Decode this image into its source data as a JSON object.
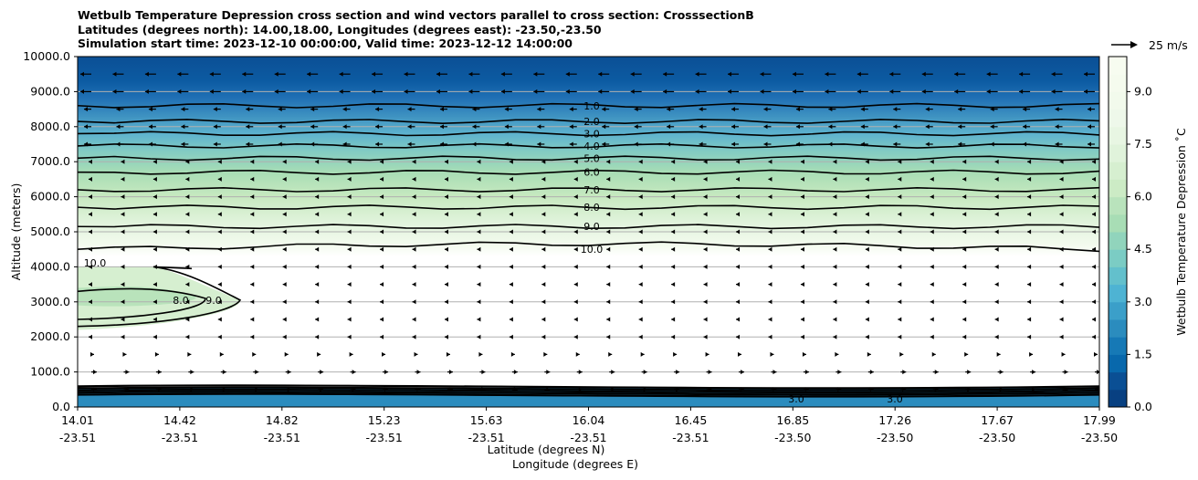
{
  "title": {
    "line1": "Wetbulb Temperature Depression cross section and wind vectors parallel to cross section: CrosssectionB",
    "line2": "Latitudes (degrees north): 14.00,18.00, Longitudes (degrees east): -23.50,-23.50",
    "line3": "Simulation start time: 2023-12-10 00:00:00, Valid time: 2023-12-12 14:00:00"
  },
  "chart_data": {
    "type": "heatmap",
    "xlabel_lat": "Latitude (degrees N)",
    "xlabel_lon": "Longitude (degrees E)",
    "ylabel": "Altitude (meters)",
    "ylim": [
      0,
      10000
    ],
    "yticks": [
      "0.0",
      "1000.0",
      "2000.0",
      "3000.0",
      "4000.0",
      "5000.0",
      "6000.0",
      "7000.0",
      "8000.0",
      "9000.0",
      "10000.0"
    ],
    "yticks_values": [
      0,
      1000,
      2000,
      3000,
      4000,
      5000,
      6000,
      7000,
      8000,
      9000,
      10000
    ],
    "xticks": [
      {
        "lat": "14.01",
        "lon": "-23.51"
      },
      {
        "lat": "14.42",
        "lon": "-23.51"
      },
      {
        "lat": "14.82",
        "lon": "-23.51"
      },
      {
        "lat": "15.23",
        "lon": "-23.51"
      },
      {
        "lat": "15.63",
        "lon": "-23.51"
      },
      {
        "lat": "16.04",
        "lon": "-23.51"
      },
      {
        "lat": "16.45",
        "lon": "-23.51"
      },
      {
        "lat": "16.85",
        "lon": "-23.50"
      },
      {
        "lat": "17.26",
        "lon": "-23.50"
      },
      {
        "lat": "17.67",
        "lon": "-23.50"
      },
      {
        "lat": "17.99",
        "lon": "-23.50"
      }
    ],
    "xlim": [
      14.01,
      17.99
    ],
    "grid": "horizontal",
    "colorbar": {
      "label": "Wetbulb Temperature Depression ˚C",
      "ticks": [
        "0.0",
        "1.5",
        "3.0",
        "4.5",
        "6.0",
        "7.5",
        "9.0"
      ],
      "tick_values": [
        0,
        1.5,
        3,
        4.5,
        6,
        7.5,
        9
      ],
      "range": [
        0,
        10
      ],
      "colormap": "GnBu_r"
    },
    "contour_levels": [
      {
        "label": "1.0",
        "value": 1,
        "altitude": 8600
      },
      {
        "label": "2.0",
        "value": 2,
        "altitude": 8150
      },
      {
        "label": "3.0",
        "value": 3,
        "altitude": 7800
      },
      {
        "label": "4.0",
        "value": 4,
        "altitude": 7450
      },
      {
        "label": "5.0",
        "value": 5,
        "altitude": 7100
      },
      {
        "label": "6.0",
        "value": 6,
        "altitude": 6700
      },
      {
        "label": "7.0",
        "value": 7,
        "altitude": 6200
      },
      {
        "label": "8.0",
        "value": 8,
        "altitude": 5700
      },
      {
        "label": "9.0",
        "value": 9,
        "altitude": 5150
      },
      {
        "label": "10.0",
        "value": 10,
        "altitude": 4500
      }
    ],
    "low_level_labels": [
      "10.0",
      "8.0",
      "9.0",
      "3.0",
      "3.0"
    ],
    "wind_key": {
      "label": "25 m/s",
      "speed": 25
    }
  }
}
